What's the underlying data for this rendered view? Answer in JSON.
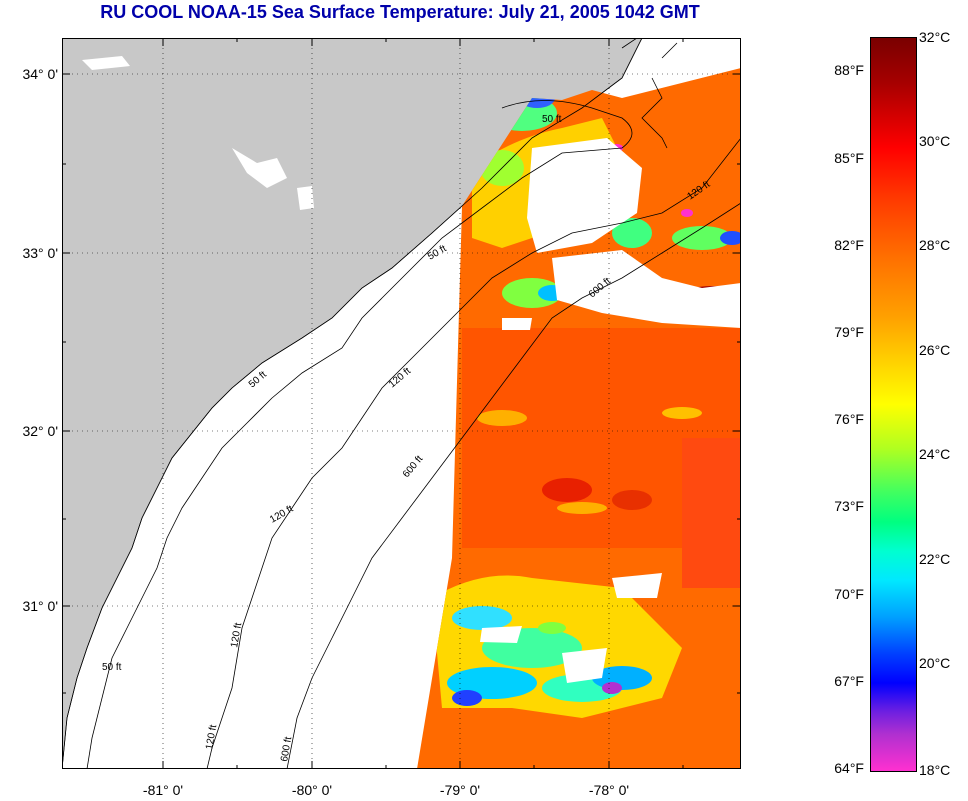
{
  "title": "RU COOL  NOAA-15  Sea Surface Temperature:  July 21, 2005 1042 GMT",
  "latitude_labels": [
    "34° 0'",
    "33° 0'",
    "32° 0'",
    "31° 0'"
  ],
  "longitude_labels": [
    "-81° 0'",
    "-80° 0'",
    "-79° 0'",
    "-78° 0'"
  ],
  "contour_labels": [
    "50 ft",
    "50 ft",
    "120 ft",
    "600 ft",
    "50 ft",
    "120 ft",
    "600 ft",
    "120 ft",
    "120 ft",
    "50 ft",
    "120 ft",
    "600 ft"
  ],
  "colorbar": {
    "fahrenheit": [
      "88°F",
      "85°F",
      "82°F",
      "79°F",
      "76°F",
      "73°F",
      "70°F",
      "67°F",
      "64°F"
    ],
    "celsius": [
      "32°C",
      "30°C",
      "28°C",
      "26°C",
      "24°C",
      "22°C",
      "20°C",
      "18°C"
    ]
  },
  "colors": {
    "land": "#c8c8c8",
    "no_data": "#ffffff",
    "title": "#0000aa"
  }
}
